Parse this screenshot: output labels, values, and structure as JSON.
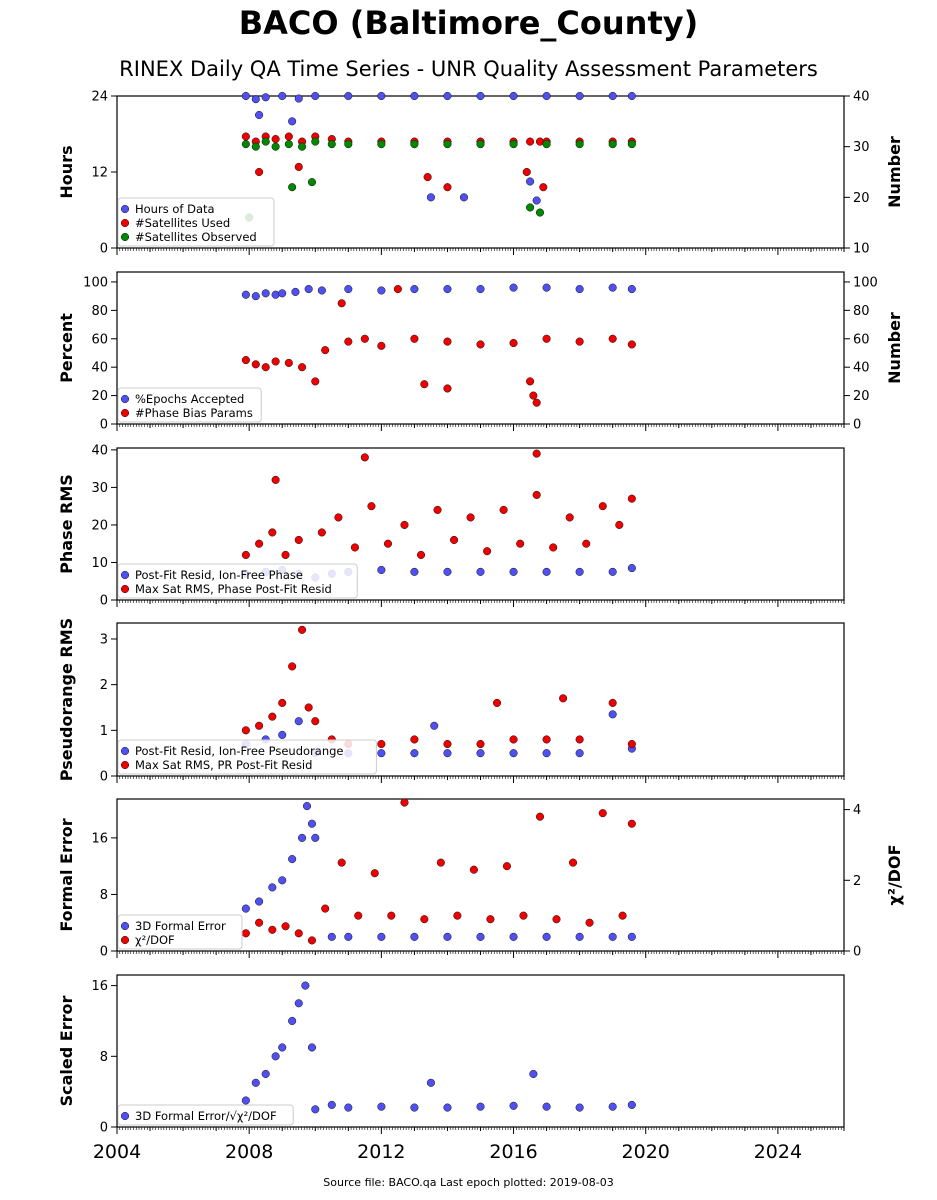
{
  "title": "BACO (Baltimore_County)",
  "subtitle": "RINEX Daily QA Time Series - UNR Quality Assessment Parameters",
  "footer": "Source file: BACO.qa Last epoch plotted: 2019-08-03",
  "colors": {
    "blue": "#5050f0",
    "red": "#ee0000",
    "green": "#008800",
    "edge": "#111111"
  },
  "chart_data": [
    {
      "type": "scatter",
      "ylabel": "Hours",
      "ylabel_right": "Number",
      "xlim": [
        2004,
        2026
      ],
      "ylim": [
        0,
        24
      ],
      "ylim_right": [
        10,
        40
      ],
      "yticks": [
        0,
        12,
        24
      ],
      "yticks_right": [
        10,
        20,
        30,
        40
      ],
      "legend": "lower-left",
      "series": [
        {
          "name": "Hours of Data",
          "color": "blue",
          "axis": "left",
          "x": [
            2007.9,
            2008.2,
            2008.5,
            2009.0,
            2009.5,
            2010.0,
            2011.0,
            2012.0,
            2013.0,
            2014.0,
            2015.0,
            2016.0,
            2017.0,
            2018.0,
            2019.0,
            2019.58,
            2008.3,
            2009.3,
            2013.5,
            2014.5,
            2016.5,
            2016.7
          ],
          "y": [
            24,
            23.5,
            23.8,
            24,
            23.6,
            24,
            24,
            24,
            24,
            24,
            24,
            24,
            24,
            24,
            24,
            24,
            21,
            20,
            8,
            8,
            10.5,
            7.5
          ]
        },
        {
          "name": "#Satellites Used",
          "color": "red",
          "axis": "right",
          "x": [
            2007.9,
            2008.2,
            2008.5,
            2008.8,
            2009.2,
            2009.6,
            2010.0,
            2010.5,
            2011.0,
            2012.0,
            2013.0,
            2014.0,
            2015.0,
            2016.0,
            2016.5,
            2016.8,
            2017.0,
            2018.0,
            2019.0,
            2019.58,
            2008.3,
            2009.5,
            2016.4,
            2016.9,
            2013.4,
            2014.0
          ],
          "y": [
            32,
            31,
            32,
            31.5,
            32,
            31,
            32,
            31.5,
            31,
            31,
            31,
            31,
            31,
            31,
            31,
            31,
            31,
            31,
            31,
            31,
            25,
            26,
            25,
            22,
            24,
            22
          ]
        },
        {
          "name": "#Satellites Observed",
          "color": "green",
          "axis": "right",
          "x": [
            2007.9,
            2008.2,
            2008.5,
            2008.8,
            2009.2,
            2009.6,
            2010.0,
            2010.5,
            2011.0,
            2012.0,
            2013.0,
            2014.0,
            2015.0,
            2016.0,
            2017.0,
            2018.0,
            2019.0,
            2019.58,
            2008.0,
            2009.3,
            2009.9,
            2016.5,
            2016.8
          ],
          "y": [
            30.5,
            30,
            31,
            30,
            30.5,
            30,
            31,
            30.5,
            30.5,
            30.5,
            30.5,
            30.5,
            30.5,
            30.5,
            30.5,
            30.5,
            30.5,
            30.5,
            16,
            22,
            23,
            18,
            17
          ]
        }
      ]
    },
    {
      "type": "scatter",
      "ylabel": "Percent",
      "ylabel_right": "Number",
      "xlim": [
        2004,
        2026
      ],
      "ylim": [
        0,
        107
      ],
      "ylim_right": [
        0,
        107
      ],
      "yticks": [
        0,
        20,
        40,
        60,
        80,
        100
      ],
      "yticks_right": [
        0,
        20,
        40,
        60,
        80,
        100
      ],
      "legend": "lower-left",
      "series": [
        {
          "name": "%Epochs Accepted",
          "color": "blue",
          "axis": "left",
          "x": [
            2007.9,
            2008.2,
            2008.5,
            2008.8,
            2009.0,
            2009.4,
            2009.8,
            2010.2,
            2011.0,
            2012.0,
            2013.0,
            2014.0,
            2015.0,
            2016.0,
            2017.0,
            2018.0,
            2019.0,
            2019.58
          ],
          "y": [
            91,
            90,
            92,
            91,
            92,
            93,
            95,
            94,
            95,
            94,
            95,
            95,
            95,
            96,
            96,
            95,
            96,
            95
          ]
        },
        {
          "name": "#Phase Bias Params",
          "color": "red",
          "axis": "right",
          "x": [
            2007.9,
            2008.2,
            2008.5,
            2008.8,
            2009.2,
            2009.6,
            2010.0,
            2010.3,
            2011.0,
            2011.5,
            2012.0,
            2013.0,
            2014.0,
            2015.0,
            2016.0,
            2016.5,
            2016.7,
            2017.0,
            2018.0,
            2019.0,
            2019.58,
            2010.8,
            2012.5,
            2013.3,
            2014.0,
            2016.6
          ],
          "y": [
            45,
            42,
            40,
            44,
            43,
            40,
            30,
            52,
            58,
            60,
            55,
            60,
            58,
            56,
            57,
            30,
            15,
            60,
            58,
            60,
            56,
            85,
            95,
            28,
            25,
            20
          ]
        }
      ]
    },
    {
      "type": "scatter",
      "ylabel": "Phase RMS",
      "xlim": [
        2004,
        2026
      ],
      "ylim": [
        0,
        40.5
      ],
      "yticks": [
        0,
        10,
        20,
        30,
        40
      ],
      "legend": "lower-left",
      "series": [
        {
          "name": "Post-Fit Resid, Ion-Free Phase",
          "color": "blue",
          "axis": "left",
          "x": [
            2007.9,
            2008.5,
            2009.0,
            2009.5,
            2010.0,
            2010.5,
            2011.0,
            2012.0,
            2013.0,
            2014.0,
            2015.0,
            2016.0,
            2017.0,
            2018.0,
            2019.0,
            2019.58
          ],
          "y": [
            7,
            7.5,
            8,
            7,
            6,
            7,
            7.5,
            8,
            7.5,
            7.5,
            7.5,
            7.5,
            7.5,
            7.5,
            7.5,
            8.5
          ]
        },
        {
          "name": "Max Sat RMS, Phase Post-Fit Resid",
          "color": "red",
          "axis": "left",
          "x": [
            2007.9,
            2008.3,
            2008.7,
            2009.1,
            2009.5,
            2010.2,
            2010.7,
            2011.2,
            2011.7,
            2012.2,
            2012.7,
            2013.2,
            2013.7,
            2014.2,
            2014.7,
            2015.2,
            2015.7,
            2016.2,
            2016.7,
            2017.2,
            2017.7,
            2018.2,
            2018.7,
            2019.2,
            2019.58,
            2011.5,
            2016.7,
            2008.8
          ],
          "y": [
            12,
            15,
            18,
            12,
            16,
            18,
            22,
            14,
            25,
            15,
            20,
            12,
            24,
            16,
            22,
            13,
            24,
            15,
            28,
            14,
            22,
            15,
            25,
            20,
            27,
            38,
            39,
            32
          ]
        }
      ]
    },
    {
      "type": "scatter",
      "ylabel": "Pseudorange RMS",
      "xlim": [
        2004,
        2026
      ],
      "ylim": [
        0,
        3.35
      ],
      "yticks": [
        0,
        1,
        2,
        3
      ],
      "legend": "lower-left",
      "series": [
        {
          "name": "Post-Fit Resid, Ion-Free Pseudorange",
          "color": "blue",
          "axis": "left",
          "x": [
            2007.9,
            2008.5,
            2009.0,
            2009.5,
            2010.0,
            2011.0,
            2012.0,
            2013.0,
            2013.6,
            2014.0,
            2015.0,
            2016.0,
            2017.0,
            2018.0,
            2019.0,
            2019.58
          ],
          "y": [
            0.7,
            0.8,
            0.9,
            1.2,
            0.5,
            0.5,
            0.5,
            0.5,
            1.1,
            0.5,
            0.5,
            0.5,
            0.5,
            0.5,
            1.35,
            0.6
          ]
        },
        {
          "name": "Max Sat RMS, PR Post-Fit Resid",
          "color": "red",
          "axis": "left",
          "x": [
            2007.9,
            2008.3,
            2008.7,
            2009.0,
            2009.3,
            2009.6,
            2009.8,
            2010.0,
            2010.5,
            2011.0,
            2012.0,
            2013.0,
            2014.0,
            2015.0,
            2015.5,
            2016.0,
            2017.0,
            2017.5,
            2018.0,
            2019.0,
            2019.58
          ],
          "y": [
            1.0,
            1.1,
            1.3,
            1.6,
            2.4,
            3.2,
            1.5,
            1.2,
            0.8,
            0.7,
            0.7,
            0.8,
            0.7,
            0.7,
            1.6,
            0.8,
            0.8,
            1.7,
            0.8,
            1.6,
            0.7
          ]
        }
      ]
    },
    {
      "type": "scatter",
      "ylabel": "Formal Error",
      "ylabel_right": "χ²/DOF",
      "xlim": [
        2004,
        2026
      ],
      "ylim": [
        0,
        21.5
      ],
      "ylim_right": [
        0,
        4.3
      ],
      "yticks": [
        0,
        8,
        16
      ],
      "yticks_right": [
        0,
        2,
        4
      ],
      "legend": "lower-left",
      "series": [
        {
          "name": "3D Formal Error",
          "color": "blue",
          "axis": "left",
          "x": [
            2007.9,
            2008.3,
            2008.7,
            2009.0,
            2009.3,
            2009.6,
            2009.75,
            2009.9,
            2010.0,
            2010.5,
            2011.0,
            2012.0,
            2013.0,
            2014.0,
            2015.0,
            2016.0,
            2017.0,
            2018.0,
            2019.0,
            2019.58
          ],
          "y": [
            6,
            7,
            9,
            10,
            13,
            16,
            20.5,
            18,
            16,
            2,
            2,
            2,
            2,
            2,
            2,
            2,
            2,
            2,
            2,
            2
          ]
        },
        {
          "name": "χ²/DOF",
          "color": "red",
          "axis": "right",
          "x": [
            2007.9,
            2008.3,
            2008.7,
            2009.1,
            2009.5,
            2009.9,
            2010.3,
            2010.8,
            2011.3,
            2011.8,
            2012.3,
            2012.7,
            2013.3,
            2013.8,
            2014.3,
            2014.8,
            2015.3,
            2015.8,
            2016.3,
            2016.8,
            2017.3,
            2017.8,
            2018.3,
            2018.7,
            2019.3,
            2019.58
          ],
          "y": [
            0.5,
            0.8,
            0.6,
            0.7,
            0.5,
            0.3,
            1.2,
            2.5,
            1.0,
            2.2,
            1.0,
            4.2,
            0.9,
            2.5,
            1.0,
            2.3,
            0.9,
            2.4,
            1.0,
            3.8,
            0.9,
            2.5,
            0.8,
            3.9,
            1.0,
            3.6
          ]
        }
      ]
    },
    {
      "type": "scatter",
      "ylabel": "Scaled Error",
      "xlim": [
        2004,
        2026
      ],
      "ylim": [
        0,
        17.2
      ],
      "yticks": [
        0,
        8,
        16
      ],
      "legend": "lower-left",
      "xticks": [
        2004,
        2008,
        2012,
        2016,
        2020,
        2024
      ],
      "series": [
        {
          "name": "3D Formal Error/√χ²/DOF",
          "color": "blue",
          "axis": "left",
          "x": [
            2007.9,
            2008.2,
            2008.5,
            2008.8,
            2009.0,
            2009.3,
            2009.5,
            2009.7,
            2009.9,
            2010.0,
            2010.5,
            2011.0,
            2012.0,
            2013.0,
            2013.5,
            2014.0,
            2015.0,
            2016.0,
            2016.6,
            2017.0,
            2018.0,
            2019.0,
            2019.58
          ],
          "y": [
            3,
            5,
            6,
            8,
            9,
            12,
            14,
            16,
            9,
            2,
            2.5,
            2.2,
            2.3,
            2.2,
            5,
            2.2,
            2.3,
            2.4,
            6,
            2.3,
            2.2,
            2.3,
            2.5
          ]
        }
      ]
    }
  ]
}
